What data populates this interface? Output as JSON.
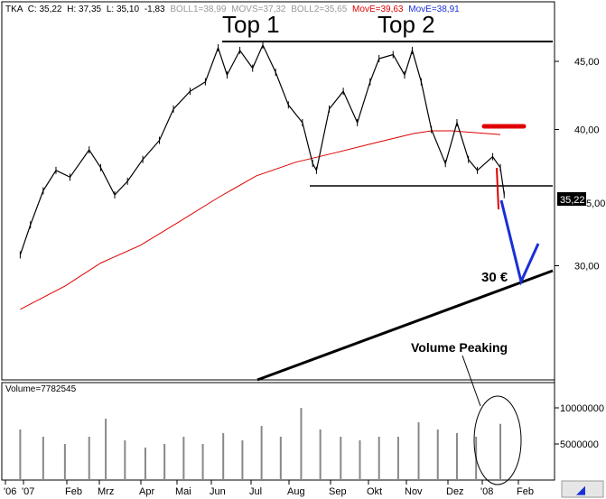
{
  "header": {
    "ticker": "TKA",
    "close": "C: 35,22",
    "high": "H: 37,35",
    "low": "L: 35,10",
    "change": "-1,83",
    "boll1": "BOLL1=38,99",
    "movs": "MOVS=37,32",
    "boll2": "BOLL2=35,65",
    "move1": "MovE=39,63",
    "move2": "MovE=38,91"
  },
  "volume_label": "Volume=7782545",
  "price_axis": {
    "ticks": [
      "45,00",
      "40,00",
      "30,00"
    ],
    "last_price_tag": "35,22",
    "partial_tick": "5,00"
  },
  "volume_axis": {
    "ticks": [
      "10000000",
      "5000000"
    ]
  },
  "x_axis": {
    "ticks": [
      "'06",
      "'07",
      "Feb",
      "Mrz",
      "Apr",
      "Mai",
      "Jun",
      "Jul",
      "Aug",
      "Sep",
      "Okt",
      "Nov",
      "Dez",
      "'08",
      "Feb"
    ]
  },
  "annotations": {
    "top1": "Top 1",
    "top2": "Top 2",
    "target": "30 €",
    "volume_peaking": "Volume Peaking"
  },
  "colors": {
    "price": "#000000",
    "moving_average": "#dd0000",
    "projection": "#1a2fd6",
    "resistance_marker": "#e00000",
    "volume_bars": "#888888"
  },
  "chart_data": {
    "type": "line",
    "title": "TKA",
    "price_ylim": [
      26,
      48
    ],
    "volume_ylim": [
      0,
      11000000
    ],
    "price_series": {
      "name": "TKA",
      "dates": [
        "2006-12-28",
        "2007-01-05",
        "2007-01-15",
        "2007-01-25",
        "2007-02-05",
        "2007-02-20",
        "2007-03-01",
        "2007-03-12",
        "2007-03-22",
        "2007-04-03",
        "2007-04-16",
        "2007-04-27",
        "2007-05-10",
        "2007-05-22",
        "2007-06-01",
        "2007-06-08",
        "2007-06-18",
        "2007-06-28",
        "2007-07-06",
        "2007-07-16",
        "2007-07-26",
        "2007-08-06",
        "2007-08-14",
        "2007-08-17",
        "2007-08-27",
        "2007-09-07",
        "2007-09-18",
        "2007-09-28",
        "2007-10-05",
        "2007-10-16",
        "2007-10-25",
        "2007-10-31",
        "2007-11-07",
        "2007-11-15",
        "2007-11-26",
        "2007-12-05",
        "2007-12-14",
        "2007-12-21",
        "2008-01-02",
        "2008-01-08",
        "2008-01-11"
      ],
      "values": [
        30.8,
        33.0,
        35.5,
        37.0,
        36.5,
        38.5,
        37.2,
        35.2,
        36.2,
        37.8,
        39.2,
        41.5,
        42.8,
        43.5,
        46.0,
        44.0,
        45.8,
        44.5,
        46.2,
        44.2,
        41.8,
        40.5,
        37.5,
        37.0,
        41.5,
        42.8,
        40.5,
        43.5,
        45.2,
        45.5,
        44.0,
        45.8,
        43.5,
        40.0,
        37.5,
        40.5,
        37.8,
        37.0,
        38.0,
        37.2,
        35.22
      ]
    },
    "moving_average_series": {
      "name": "MovE",
      "dates": [
        "2006-12-28",
        "2007-02-01",
        "2007-03-01",
        "2007-04-01",
        "2007-05-01",
        "2007-06-01",
        "2007-07-01",
        "2007-08-01",
        "2007-09-01",
        "2007-10-01",
        "2007-11-01",
        "2007-11-15",
        "2007-12-01",
        "2008-01-08"
      ],
      "values": [
        26.8,
        28.5,
        30.2,
        31.5,
        33.2,
        35.0,
        36.6,
        37.6,
        38.3,
        39.0,
        39.7,
        39.9,
        39.9,
        39.63
      ]
    },
    "support_level": 37.0,
    "resistance_level": 46.2,
    "target_price": 30.0,
    "volume": {
      "dates": [
        "2006-12-28",
        "2007-01-15",
        "2007-02-01",
        "2007-02-20",
        "2007-03-05",
        "2007-03-20",
        "2007-04-05",
        "2007-04-20",
        "2007-05-05",
        "2007-05-20",
        "2007-06-05",
        "2007-06-20",
        "2007-07-05",
        "2007-07-20",
        "2007-08-05",
        "2007-08-20",
        "2007-09-05",
        "2007-09-20",
        "2007-10-05",
        "2007-10-20",
        "2007-11-05",
        "2007-11-20",
        "2007-12-05",
        "2007-12-20",
        "2008-01-08"
      ],
      "values": [
        7000000,
        6000000,
        5000000,
        6000000,
        8500000,
        5500000,
        4500000,
        5000000,
        6000000,
        5000000,
        6500000,
        5500000,
        7500000,
        6000000,
        10000000,
        7000000,
        6000000,
        5500000,
        6000000,
        6000000,
        8000000,
        7000000,
        6500000,
        6000000,
        7782545
      ]
    },
    "last_volume": 7782545
  }
}
